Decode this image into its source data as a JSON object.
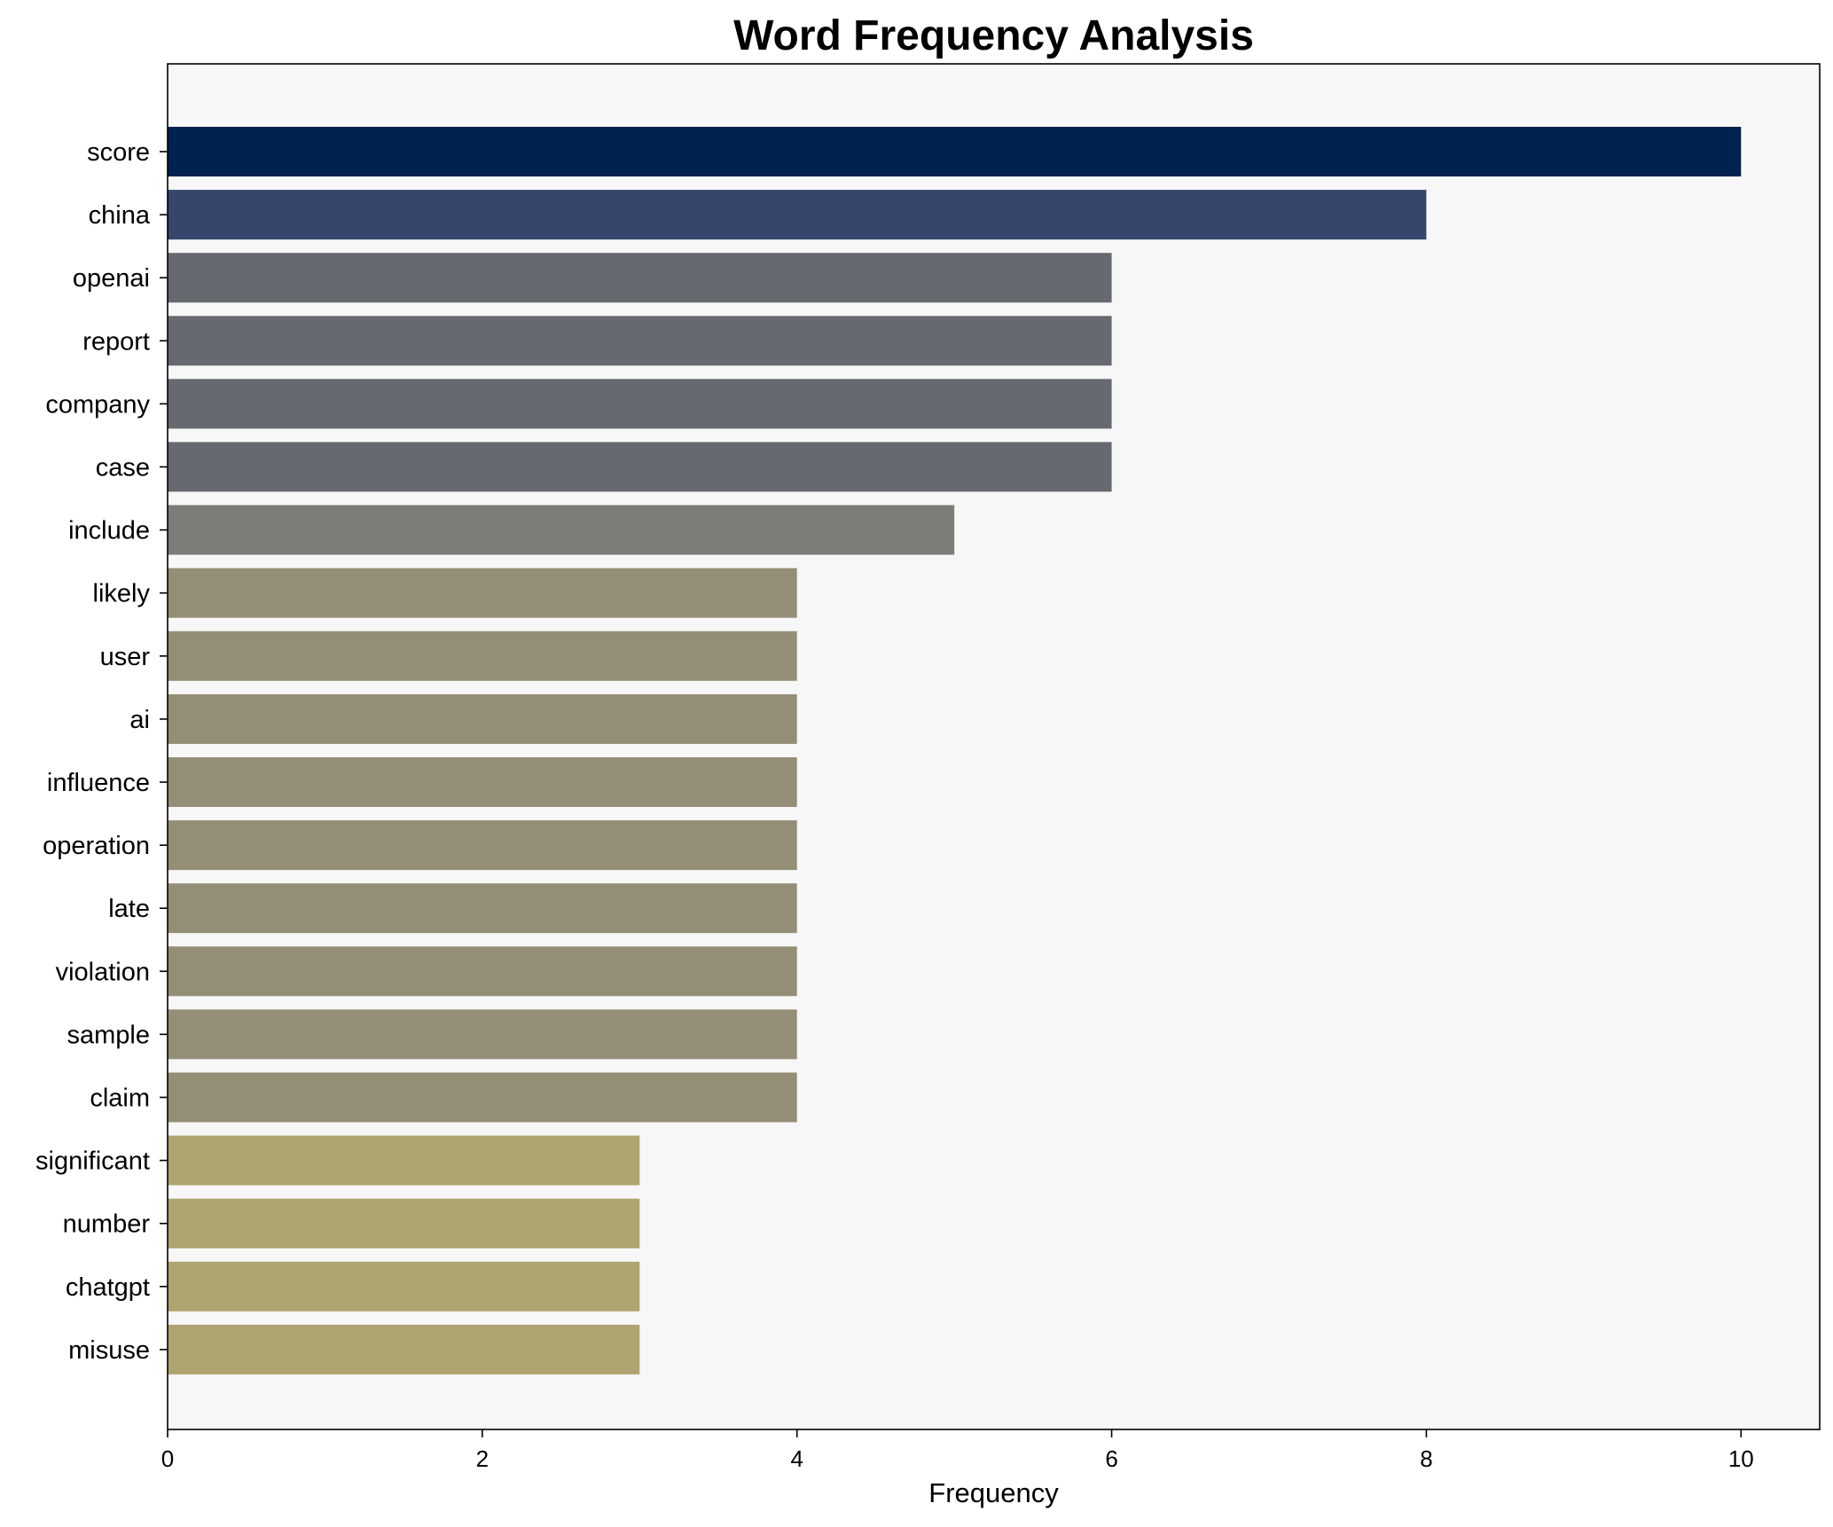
{
  "chart_data": {
    "type": "bar",
    "orientation": "horizontal",
    "title": "Word Frequency Analysis",
    "xlabel": "Frequency",
    "ylabel": "",
    "xlim": [
      0,
      10.5
    ],
    "xticks": [
      0,
      2,
      4,
      6,
      8,
      10
    ],
    "grid": false,
    "legend": "none",
    "background": "#f7f7f7",
    "categories": [
      "score",
      "china",
      "openai",
      "report",
      "company",
      "case",
      "include",
      "likely",
      "user",
      "ai",
      "influence",
      "operation",
      "late",
      "violation",
      "sample",
      "claim",
      "significant",
      "number",
      "chatgpt",
      "misuse"
    ],
    "values": [
      10,
      8,
      6,
      6,
      6,
      6,
      5,
      4,
      4,
      4,
      4,
      4,
      4,
      4,
      4,
      4,
      3,
      3,
      3,
      3
    ],
    "colors": [
      "#00224e",
      "#35456c",
      "#666970",
      "#666970",
      "#666970",
      "#666970",
      "#7d7c78",
      "#948e77",
      "#948e77",
      "#948e77",
      "#948e77",
      "#948e77",
      "#948e77",
      "#948e77",
      "#948e77",
      "#948e77",
      "#aea46f",
      "#aea46f",
      "#aea46f",
      "#aea46f"
    ]
  }
}
